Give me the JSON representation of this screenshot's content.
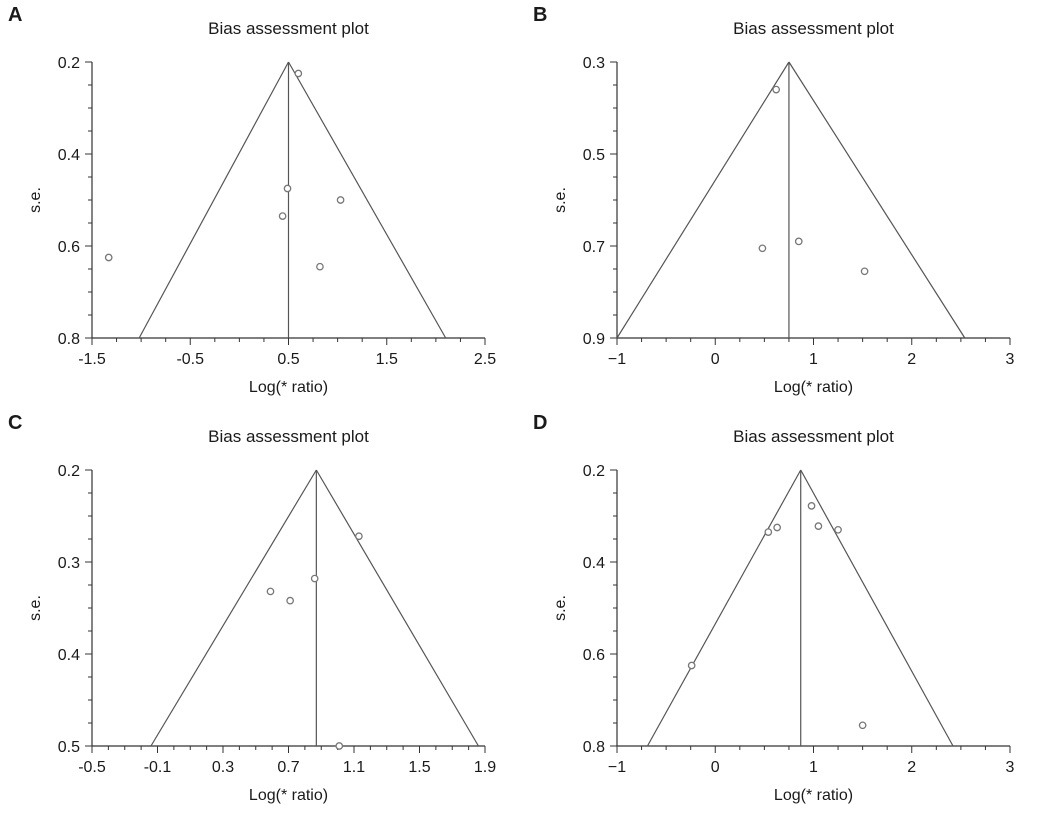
{
  "chart_data": [
    {
      "panel": "A",
      "type": "scatter",
      "title": "Bias assessment plot",
      "xlabel": "Log(* ratio)",
      "ylabel": "s.e.",
      "xlim": [
        -1.5,
        2.5
      ],
      "ylim": [
        0.2,
        0.8
      ],
      "xticks": [
        "-1.5",
        "-0.5",
        "0.5",
        "1.5",
        "2.5"
      ],
      "xtick_values": [
        -1.5,
        -0.5,
        0.5,
        1.5,
        2.5
      ],
      "yticks": [
        "0.2",
        "0.4",
        "0.6",
        "0.8"
      ],
      "ytick_values": [
        0.2,
        0.4,
        0.6,
        0.8
      ],
      "y_reversed": true,
      "pooled_estimate": 0.5,
      "funnel_bottom": [
        -1.02,
        2.1
      ],
      "points": [
        {
          "x": 0.6,
          "y": 0.225
        },
        {
          "x": 0.49,
          "y": 0.475
        },
        {
          "x": 0.44,
          "y": 0.535
        },
        {
          "x": 1.03,
          "y": 0.5
        },
        {
          "x": 0.82,
          "y": 0.645
        },
        {
          "x": -1.33,
          "y": 0.625
        }
      ]
    },
    {
      "panel": "B",
      "type": "scatter",
      "title": "Bias assessment plot",
      "xlabel": "Log(* ratio)",
      "ylabel": "s.e.",
      "xlim": [
        -1,
        3
      ],
      "ylim": [
        0.3,
        0.9
      ],
      "xticks": [
        "−1",
        "0",
        "1",
        "2",
        "3"
      ],
      "xtick_values": [
        -1,
        0,
        1,
        2,
        3
      ],
      "yticks": [
        "0.3",
        "0.5",
        "0.7",
        "0.9"
      ],
      "ytick_values": [
        0.3,
        0.5,
        0.7,
        0.9
      ],
      "y_reversed": true,
      "pooled_estimate": 0.75,
      "funnel_bottom": [
        -1.0,
        2.54
      ],
      "points": [
        {
          "x": 0.62,
          "y": 0.36
        },
        {
          "x": 0.48,
          "y": 0.705
        },
        {
          "x": 0.85,
          "y": 0.69
        },
        {
          "x": 1.52,
          "y": 0.755
        }
      ]
    },
    {
      "panel": "C",
      "type": "scatter",
      "title": "Bias assessment plot",
      "xlabel": "Log(* ratio)",
      "ylabel": "s.e.",
      "xlim": [
        -0.5,
        1.9
      ],
      "ylim": [
        0.2,
        0.5
      ],
      "xticks": [
        "-0.5",
        "-0.1",
        "0.3",
        "0.7",
        "1.1",
        "1.5",
        "1.9"
      ],
      "xtick_values": [
        -0.5,
        -0.1,
        0.3,
        0.7,
        1.1,
        1.5,
        1.9
      ],
      "yticks": [
        "0.2",
        "0.3",
        "0.4",
        "0.5"
      ],
      "ytick_values": [
        0.2,
        0.3,
        0.4,
        0.5
      ],
      "y_reversed": true,
      "pooled_estimate": 0.87,
      "funnel_bottom": [
        -0.14,
        1.86
      ],
      "points": [
        {
          "x": 1.13,
          "y": 0.272
        },
        {
          "x": 0.86,
          "y": 0.318
        },
        {
          "x": 0.59,
          "y": 0.332
        },
        {
          "x": 0.71,
          "y": 0.342
        },
        {
          "x": 1.01,
          "y": 0.5
        }
      ]
    },
    {
      "panel": "D",
      "type": "scatter",
      "title": "Bias assessment plot",
      "xlabel": "Log(* ratio)",
      "ylabel": "s.e.",
      "xlim": [
        -1,
        3
      ],
      "ylim": [
        0.2,
        0.8
      ],
      "xticks": [
        "−1",
        "0",
        "1",
        "2",
        "3"
      ],
      "xtick_values": [
        -1,
        0,
        1,
        2,
        3
      ],
      "yticks": [
        "0.2",
        "0.4",
        "0.6",
        "0.8"
      ],
      "ytick_values": [
        0.2,
        0.4,
        0.6,
        0.8
      ],
      "y_reversed": true,
      "pooled_estimate": 0.87,
      "funnel_bottom": [
        -0.69,
        2.42
      ],
      "points": [
        {
          "x": 0.98,
          "y": 0.278
        },
        {
          "x": 0.54,
          "y": 0.335
        },
        {
          "x": 0.63,
          "y": 0.325
        },
        {
          "x": 1.05,
          "y": 0.322
        },
        {
          "x": 1.25,
          "y": 0.33
        },
        {
          "x": -0.24,
          "y": 0.625
        },
        {
          "x": 1.5,
          "y": 0.755
        }
      ]
    }
  ]
}
